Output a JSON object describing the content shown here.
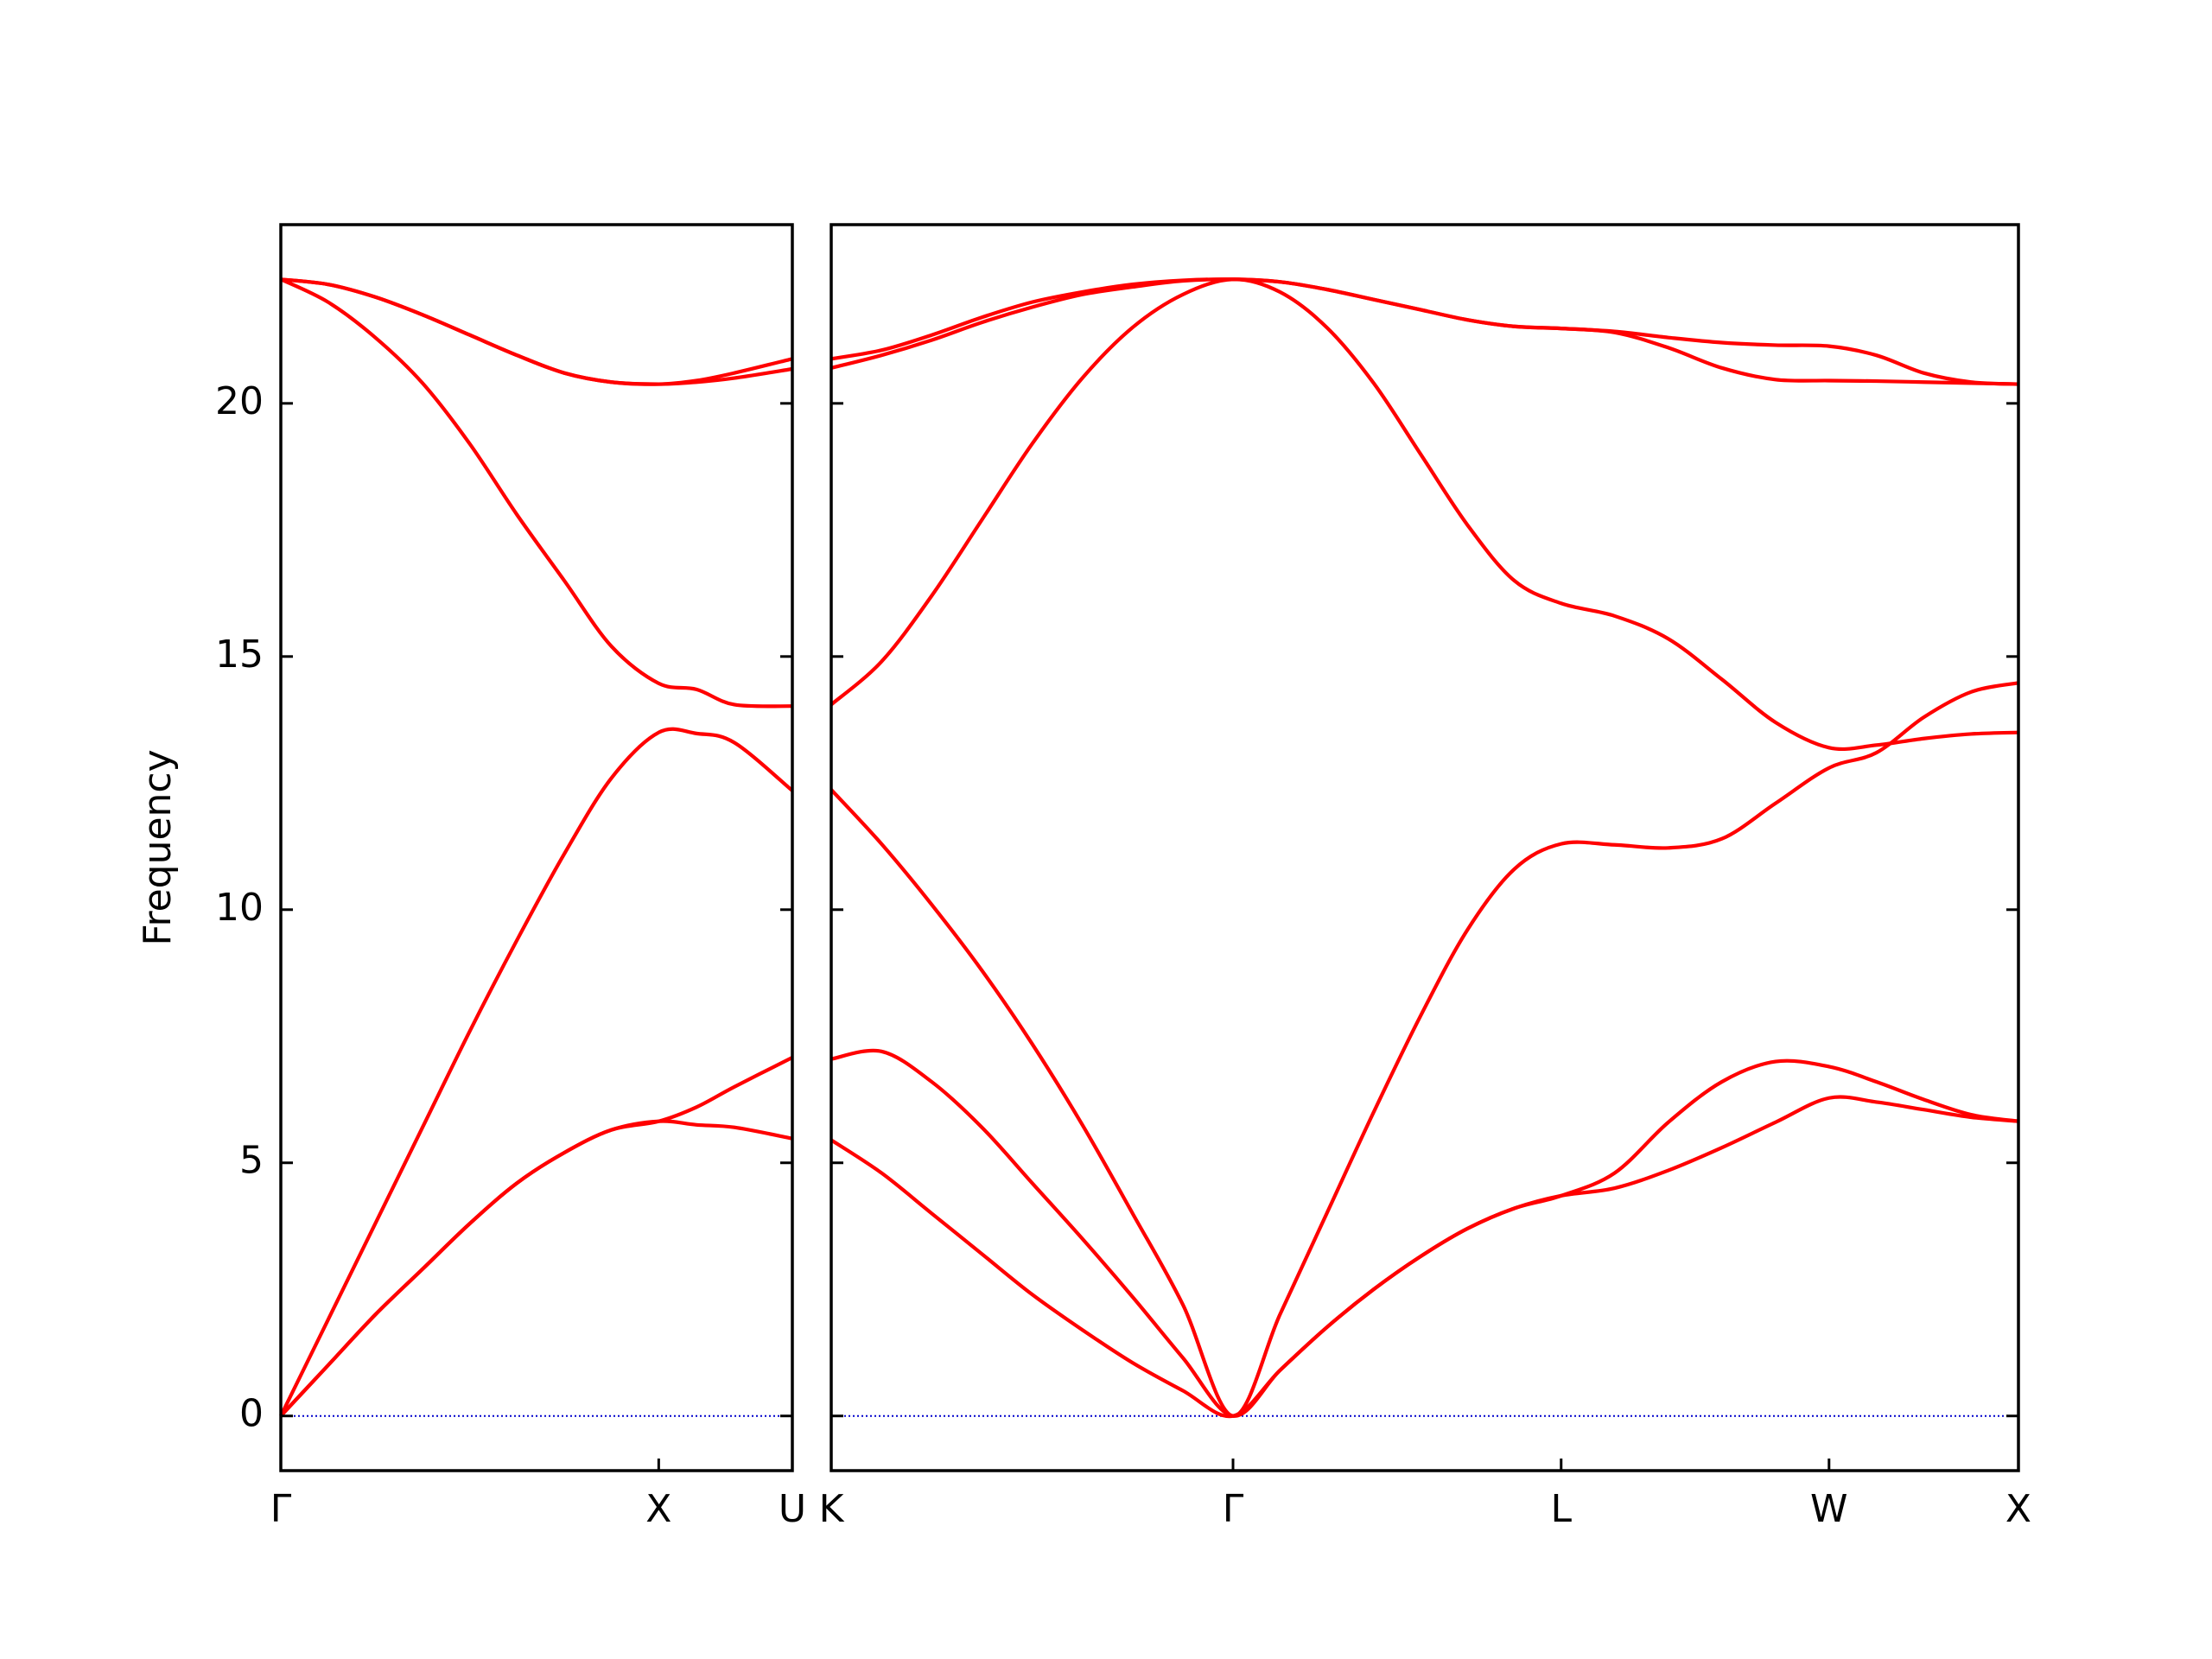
{
  "chart_data": [
    {
      "type": "line",
      "ylabel": "Frequency",
      "x": [
        0,
        0.125,
        0.25,
        0.375,
        0.5,
        0.625,
        0.75,
        0.875,
        1,
        1.1,
        1.2,
        1.3536
      ],
      "xlim": [
        0,
        1.3536
      ],
      "xticks": [
        {
          "value": 0,
          "label": "Γ"
        },
        {
          "value": 1,
          "label": "X"
        },
        {
          "value": 1.3536,
          "label": "U"
        }
      ],
      "ylim": [
        -1.08,
        23.53
      ],
      "yticks": [
        0,
        5,
        10,
        15,
        20
      ],
      "ytick_labels": true,
      "hline": {
        "y": 0,
        "color": "#0000cc",
        "style": "dotted"
      },
      "series": [
        {
          "color": "#ff0000",
          "values": [
            0,
            1.0,
            2.0,
            2.9,
            3.8,
            4.6,
            5.2,
            5.65,
            5.82,
            5.75,
            5.7,
            5.48
          ]
        },
        {
          "color": "#ff0000",
          "values": [
            0,
            1.0,
            2.0,
            2.9,
            3.8,
            4.6,
            5.2,
            5.65,
            5.82,
            6.1,
            6.5,
            7.08
          ]
        },
        {
          "color": "#ff0000",
          "values": [
            0,
            1.9,
            3.8,
            5.7,
            7.6,
            9.4,
            11.1,
            12.6,
            13.5,
            13.48,
            13.3,
            12.35
          ]
        },
        {
          "color": "#ff0000",
          "values": [
            22.45,
            22.0,
            21.3,
            20.4,
            19.2,
            17.8,
            16.5,
            15.2,
            14.47,
            14.35,
            14.05,
            14.02
          ]
        },
        {
          "color": "#ff0000",
          "values": [
            22.45,
            22.35,
            22.1,
            21.75,
            21.35,
            20.95,
            20.6,
            20.42,
            20.38,
            20.42,
            20.5,
            20.68
          ]
        },
        {
          "color": "#ff0000",
          "values": [
            22.45,
            22.35,
            22.1,
            21.75,
            21.35,
            20.95,
            20.6,
            20.42,
            20.38,
            20.45,
            20.6,
            20.88
          ]
        }
      ]
    },
    {
      "type": "line",
      "x": [
        1.3536,
        1.4862,
        1.6188,
        1.7513,
        1.8839,
        2.0165,
        2.1491,
        2.2817,
        2.4142,
        2.5379,
        2.6616,
        2.7854,
        2.9091,
        3.0328,
        3.1565,
        3.2803,
        3.4217,
        3.5631,
        3.7045,
        3.846,
        3.9874,
        4.1124,
        4.2374,
        4.3624,
        4.4874
      ],
      "xlim": [
        1.3536,
        4.4874
      ],
      "xticks": [
        {
          "value": 1.3536,
          "label": "K"
        },
        {
          "value": 2.4142,
          "label": "Γ"
        },
        {
          "value": 3.2803,
          "label": "L"
        },
        {
          "value": 3.9874,
          "label": "W"
        },
        {
          "value": 4.4874,
          "label": "X"
        }
      ],
      "ylim": [
        -1.08,
        23.53
      ],
      "yticks": [
        0,
        5,
        10,
        15,
        20
      ],
      "ytick_labels": false,
      "hline": {
        "y": 0,
        "color": "#0000cc",
        "style": "dotted"
      },
      "series": [
        {
          "color": "#ff0000",
          "values": [
            5.45,
            4.8,
            4.0,
            3.2,
            2.4,
            1.7,
            1.05,
            0.5,
            0,
            0.9,
            1.75,
            2.5,
            3.15,
            3.7,
            4.1,
            4.35,
            4.5,
            4.85,
            5.3,
            5.8,
            6.28,
            6.2,
            6.05,
            5.9,
            5.82
          ]
        },
        {
          "color": "#ff0000",
          "values": [
            7.05,
            7.2,
            6.6,
            5.7,
            4.6,
            3.5,
            2.35,
            1.15,
            0,
            0.9,
            1.75,
            2.5,
            3.15,
            3.7,
            4.1,
            4.35,
            4.8,
            5.8,
            6.6,
            7.0,
            6.9,
            6.6,
            6.25,
            5.95,
            5.82
          ]
        },
        {
          "color": "#ff0000",
          "values": [
            12.37,
            11.3,
            10.1,
            8.8,
            7.35,
            5.75,
            4.0,
            2.2,
            0,
            2.0,
            4.0,
            6.0,
            7.9,
            9.6,
            10.8,
            11.3,
            11.28,
            11.22,
            11.4,
            12.1,
            12.8,
            13.1,
            13.8,
            14.3,
            14.48
          ]
        },
        {
          "color": "#ff0000",
          "values": [
            14.05,
            14.9,
            16.2,
            17.7,
            19.2,
            20.5,
            21.5,
            22.15,
            22.45,
            22.2,
            21.5,
            20.4,
            19.0,
            17.6,
            16.5,
            16.05,
            15.8,
            15.35,
            14.55,
            13.7,
            13.2,
            13.25,
            13.38,
            13.47,
            13.5
          ]
        },
        {
          "color": "#ff0000",
          "values": [
            20.7,
            20.95,
            21.25,
            21.6,
            21.9,
            22.15,
            22.3,
            22.42,
            22.45,
            22.4,
            22.25,
            22.05,
            21.85,
            21.65,
            21.52,
            21.48,
            21.4,
            21.1,
            20.7,
            20.47,
            20.45,
            20.44,
            20.42,
            20.4,
            20.38
          ]
        },
        {
          "color": "#ff0000",
          "values": [
            20.88,
            21.05,
            21.35,
            21.7,
            22.0,
            22.2,
            22.35,
            22.43,
            22.45,
            22.4,
            22.25,
            22.05,
            21.85,
            21.65,
            21.52,
            21.48,
            21.42,
            21.3,
            21.2,
            21.15,
            21.13,
            20.95,
            20.6,
            20.42,
            20.38
          ]
        }
      ]
    }
  ]
}
